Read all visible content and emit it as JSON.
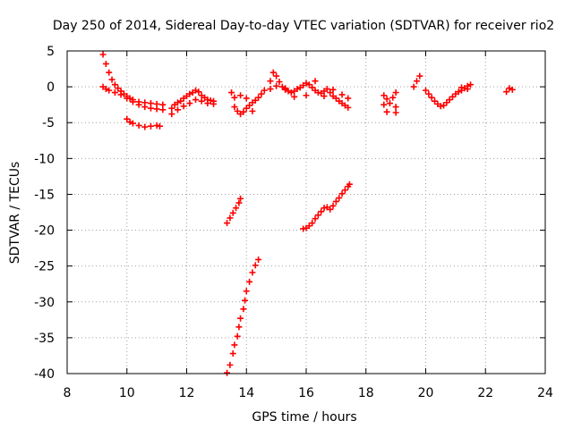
{
  "chart_data": {
    "type": "scatter",
    "title": "Day 250 of 2014, Sidereal Day-to-day VTEC variation (SDTVAR) for receiver rio2",
    "xlabel": "GPS time / hours",
    "ylabel": "SDTVAR / TECUs",
    "xlim": [
      8,
      24
    ],
    "ylim": [
      -40,
      5
    ],
    "xticks": [
      8,
      10,
      12,
      14,
      16,
      18,
      20,
      22,
      24
    ],
    "yticks": [
      5,
      0,
      -5,
      -10,
      -15,
      -20,
      -25,
      -30,
      -35,
      -40
    ],
    "xtick_labels": [
      "8",
      "10",
      "12",
      "14",
      "16",
      "18",
      "20",
      "22",
      "24"
    ],
    "ytick_labels": [
      "5",
      "0",
      "-5",
      "-10",
      "-15",
      "-20",
      "-25",
      "-30",
      "-35",
      "-40"
    ],
    "grid": true,
    "marker": "plus",
    "marker_color": "#ff0000",
    "series": [
      {
        "points": [
          [
            9.2,
            4.5
          ],
          [
            9.3,
            3.2
          ],
          [
            9.4,
            2.0
          ],
          [
            9.5,
            1.0
          ],
          [
            9.6,
            0.3
          ],
          [
            9.7,
            -0.2
          ],
          [
            9.8,
            -0.6
          ],
          [
            9.9,
            -1.0
          ],
          [
            10.0,
            -1.3
          ],
          [
            10.1,
            -1.6
          ],
          [
            10.2,
            -1.8
          ],
          [
            10.4,
            -2.1
          ],
          [
            10.6,
            -2.2
          ],
          [
            10.8,
            -2.3
          ],
          [
            11.0,
            -2.4
          ],
          [
            11.2,
            -2.5
          ],
          [
            9.2,
            0.0
          ],
          [
            9.3,
            -0.3
          ],
          [
            9.4,
            -0.5
          ],
          [
            9.6,
            -0.8
          ],
          [
            9.8,
            -1.1
          ],
          [
            10.0,
            -1.6
          ],
          [
            10.2,
            -2.1
          ],
          [
            10.4,
            -2.5
          ],
          [
            10.6,
            -2.8
          ],
          [
            10.8,
            -3.0
          ],
          [
            11.0,
            -3.1
          ],
          [
            11.2,
            -3.2
          ],
          [
            10.0,
            -4.5
          ],
          [
            10.1,
            -4.9
          ],
          [
            10.2,
            -5.1
          ],
          [
            10.4,
            -5.4
          ],
          [
            10.6,
            -5.6
          ],
          [
            10.8,
            -5.5
          ],
          [
            11.0,
            -5.4
          ],
          [
            11.1,
            -5.5
          ],
          [
            11.5,
            -3.8
          ],
          [
            11.5,
            -3.0
          ],
          [
            11.6,
            -2.5
          ],
          [
            11.7,
            -2.2
          ],
          [
            11.8,
            -2.0
          ],
          [
            11.9,
            -1.6
          ],
          [
            12.0,
            -1.3
          ],
          [
            12.1,
            -1.0
          ],
          [
            12.2,
            -0.8
          ],
          [
            12.3,
            -0.5
          ],
          [
            12.4,
            -0.7
          ],
          [
            12.5,
            -1.2
          ],
          [
            12.6,
            -1.5
          ],
          [
            12.7,
            -1.8
          ],
          [
            12.8,
            -1.9
          ],
          [
            12.9,
            -2.0
          ],
          [
            11.7,
            -3.2
          ],
          [
            11.9,
            -2.7
          ],
          [
            12.1,
            -2.3
          ],
          [
            12.3,
            -1.8
          ],
          [
            12.5,
            -2.0
          ],
          [
            12.7,
            -2.3
          ],
          [
            12.9,
            -2.4
          ],
          [
            13.5,
            -0.8
          ],
          [
            13.6,
            -1.5
          ],
          [
            13.6,
            -2.8
          ],
          [
            13.7,
            -3.4
          ],
          [
            13.8,
            -3.8
          ],
          [
            13.9,
            -3.5
          ],
          [
            14.0,
            -3.0
          ],
          [
            14.1,
            -2.6
          ],
          [
            14.2,
            -2.2
          ],
          [
            14.3,
            -1.9
          ],
          [
            14.4,
            -1.5
          ],
          [
            14.5,
            -1.0
          ],
          [
            14.6,
            -0.5
          ],
          [
            13.8,
            -1.2
          ],
          [
            14.0,
            -1.6
          ],
          [
            14.2,
            -3.4
          ],
          [
            14.8,
            -0.3
          ],
          [
            14.8,
            0.8
          ],
          [
            14.9,
            2.0
          ],
          [
            15.0,
            1.5
          ],
          [
            15.1,
            0.7
          ],
          [
            15.2,
            0.0
          ],
          [
            15.3,
            -0.4
          ],
          [
            15.4,
            -0.6
          ],
          [
            15.5,
            -0.8
          ],
          [
            15.6,
            -0.6
          ],
          [
            15.7,
            -0.3
          ],
          [
            15.8,
            -0.1
          ],
          [
            15.9,
            0.2
          ],
          [
            16.0,
            0.5
          ],
          [
            16.1,
            0.3
          ],
          [
            16.2,
            -0.1
          ],
          [
            16.3,
            -0.5
          ],
          [
            16.4,
            -0.8
          ],
          [
            16.5,
            -0.9
          ],
          [
            16.6,
            -0.6
          ],
          [
            16.7,
            -0.3
          ],
          [
            16.8,
            -0.8
          ],
          [
            16.9,
            -1.3
          ],
          [
            17.0,
            -1.6
          ],
          [
            17.1,
            -2.0
          ],
          [
            17.2,
            -2.3
          ],
          [
            17.3,
            -2.6
          ],
          [
            17.4,
            -2.9
          ],
          [
            15.0,
            0.1
          ],
          [
            15.3,
            -0.2
          ],
          [
            15.6,
            -1.4
          ],
          [
            16.0,
            -1.2
          ],
          [
            16.3,
            0.8
          ],
          [
            16.6,
            -1.3
          ],
          [
            16.9,
            -0.4
          ],
          [
            17.2,
            -1.1
          ],
          [
            17.4,
            -1.6
          ],
          [
            18.6,
            -2.5
          ],
          [
            18.6,
            -1.2
          ],
          [
            18.7,
            -3.5
          ],
          [
            18.8,
            -2.3
          ],
          [
            18.9,
            -1.5
          ],
          [
            19.0,
            -2.8
          ],
          [
            19.0,
            -3.6
          ],
          [
            19.0,
            -0.8
          ],
          [
            18.7,
            -1.7
          ],
          [
            19.6,
            0.0
          ],
          [
            19.7,
            0.8
          ],
          [
            19.8,
            1.5
          ],
          [
            20.0,
            -0.5
          ],
          [
            20.1,
            -1.0
          ],
          [
            20.2,
            -1.5
          ],
          [
            20.3,
            -2.0
          ],
          [
            20.4,
            -2.4
          ],
          [
            20.5,
            -2.7
          ],
          [
            20.6,
            -2.6
          ],
          [
            20.7,
            -2.2
          ],
          [
            20.8,
            -1.8
          ],
          [
            20.9,
            -1.4
          ],
          [
            21.0,
            -1.0
          ],
          [
            21.1,
            -0.7
          ],
          [
            21.2,
            -0.5
          ],
          [
            21.3,
            -0.2
          ],
          [
            21.4,
            0.1
          ],
          [
            21.5,
            0.3
          ],
          [
            21.4,
            -0.3
          ],
          [
            21.2,
            -0.1
          ],
          [
            22.7,
            -0.7
          ],
          [
            22.8,
            -0.2
          ],
          [
            22.9,
            -0.4
          ],
          [
            13.35,
            -19.0
          ],
          [
            13.45,
            -18.3
          ],
          [
            13.55,
            -17.6
          ],
          [
            13.65,
            -16.9
          ],
          [
            13.75,
            -16.2
          ],
          [
            13.8,
            -15.6
          ],
          [
            15.9,
            -19.8
          ],
          [
            16.0,
            -19.7
          ],
          [
            16.1,
            -19.4
          ],
          [
            16.2,
            -19.0
          ],
          [
            16.3,
            -18.4
          ],
          [
            16.4,
            -17.9
          ],
          [
            16.5,
            -17.4
          ],
          [
            16.6,
            -16.9
          ],
          [
            16.7,
            -16.8
          ],
          [
            16.8,
            -17.1
          ],
          [
            16.9,
            -16.6
          ],
          [
            17.0,
            -16.0
          ],
          [
            17.1,
            -15.5
          ],
          [
            17.2,
            -14.9
          ],
          [
            17.3,
            -14.4
          ],
          [
            17.4,
            -13.9
          ],
          [
            17.45,
            -13.6
          ],
          [
            13.35,
            -39.9
          ],
          [
            13.45,
            -38.8
          ],
          [
            13.55,
            -37.2
          ],
          [
            13.6,
            -36.0
          ],
          [
            13.7,
            -34.8
          ],
          [
            13.75,
            -33.5
          ],
          [
            13.8,
            -32.3
          ],
          [
            13.9,
            -31.0
          ],
          [
            13.95,
            -29.8
          ],
          [
            14.0,
            -28.5
          ],
          [
            14.1,
            -27.2
          ],
          [
            14.2,
            -25.9
          ],
          [
            14.3,
            -24.9
          ],
          [
            14.4,
            -24.1
          ]
        ]
      }
    ]
  }
}
